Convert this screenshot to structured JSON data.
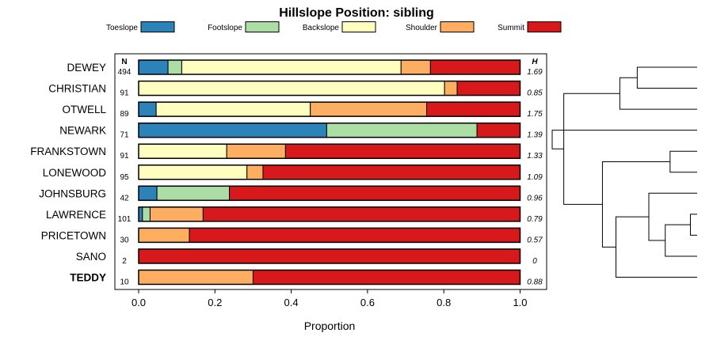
{
  "chart_data": {
    "type": "bar",
    "orientation": "horizontal",
    "stacked": true,
    "title": "Hillslope Position: sibling",
    "xlabel": "Proportion",
    "xlim": [
      0,
      1
    ],
    "xticks": [
      "0.0",
      "0.2",
      "0.4",
      "0.6",
      "0.8",
      "1.0"
    ],
    "n_header": "N",
    "h_header": "H",
    "legend": [
      {
        "name": "Toeslope",
        "color": "#2b83ba"
      },
      {
        "name": "Footslope",
        "color": "#abdda4"
      },
      {
        "name": "Backslope",
        "color": "#ffffbf"
      },
      {
        "name": "Shoulder",
        "color": "#fdae61"
      },
      {
        "name": "Summit",
        "color": "#d7191c"
      }
    ],
    "categories": [
      "DEWEY",
      "CHRISTIAN",
      "OTWELL",
      "NEWARK",
      "FRANKSTOWN",
      "LONEWOOD",
      "JOHNSBURG",
      "LAWRENCE",
      "PRICETOWN",
      "SANO",
      "TEDDY"
    ],
    "bold_category": "TEDDY",
    "n": [
      "494",
      "91",
      "89",
      "71",
      "91",
      "95",
      "42",
      "101",
      "30",
      "2",
      "10"
    ],
    "h": [
      "1.69",
      "0.85",
      "1.75",
      "1.39",
      "1.33",
      "1.09",
      "0.96",
      "0.79",
      "0.57",
      "0",
      "0.88"
    ],
    "series": [
      {
        "name": "Toeslope",
        "values": [
          0.077,
          0,
          0.046,
          0.493,
          0,
          0,
          0.048,
          0.01,
          0,
          0,
          0
        ]
      },
      {
        "name": "Footslope",
        "values": [
          0.036,
          0,
          0,
          0.394,
          0,
          0,
          0.19,
          0.02,
          0,
          0,
          0
        ]
      },
      {
        "name": "Backslope",
        "values": [
          0.575,
          0.802,
          0.404,
          0,
          0.231,
          0.284,
          0,
          0,
          0,
          0,
          0
        ]
      },
      {
        "name": "Shoulder",
        "values": [
          0.077,
          0.033,
          0.305,
          0,
          0.154,
          0.042,
          0,
          0.139,
          0.133,
          0,
          0.3
        ]
      },
      {
        "name": "Summit",
        "values": [
          0.235,
          0.165,
          0.245,
          0.113,
          0.615,
          0.674,
          0.762,
          0.831,
          0.867,
          1.0,
          0.7
        ]
      }
    ],
    "dendrogram_merges": [
      {
        "left": "DEWEY",
        "right": "CHRISTIAN",
        "height": 0.62
      },
      {
        "left": "LAWRENCE",
        "right": "PRICETOWN",
        "height": 0.07
      },
      {
        "left": "FRANKSTOWN",
        "right": "LONEWOOD",
        "height": 0.28
      },
      {
        "left": "m1",
        "right": "SANO",
        "height": 0.33
      },
      {
        "left": "m0",
        "right": "OTWELL",
        "height": 0.8
      },
      {
        "left": "JOHNSBURG",
        "right": "m3",
        "height": 0.5
      },
      {
        "left": "m5",
        "right": "TEDDY",
        "height": 0.84
      },
      {
        "left": "m2",
        "right": "m6",
        "height": 0.98
      },
      {
        "left": "m4",
        "right": "m7",
        "height": 1.38
      },
      {
        "left": "m8",
        "right": "NEWARK",
        "height": 1.5
      }
    ]
  }
}
